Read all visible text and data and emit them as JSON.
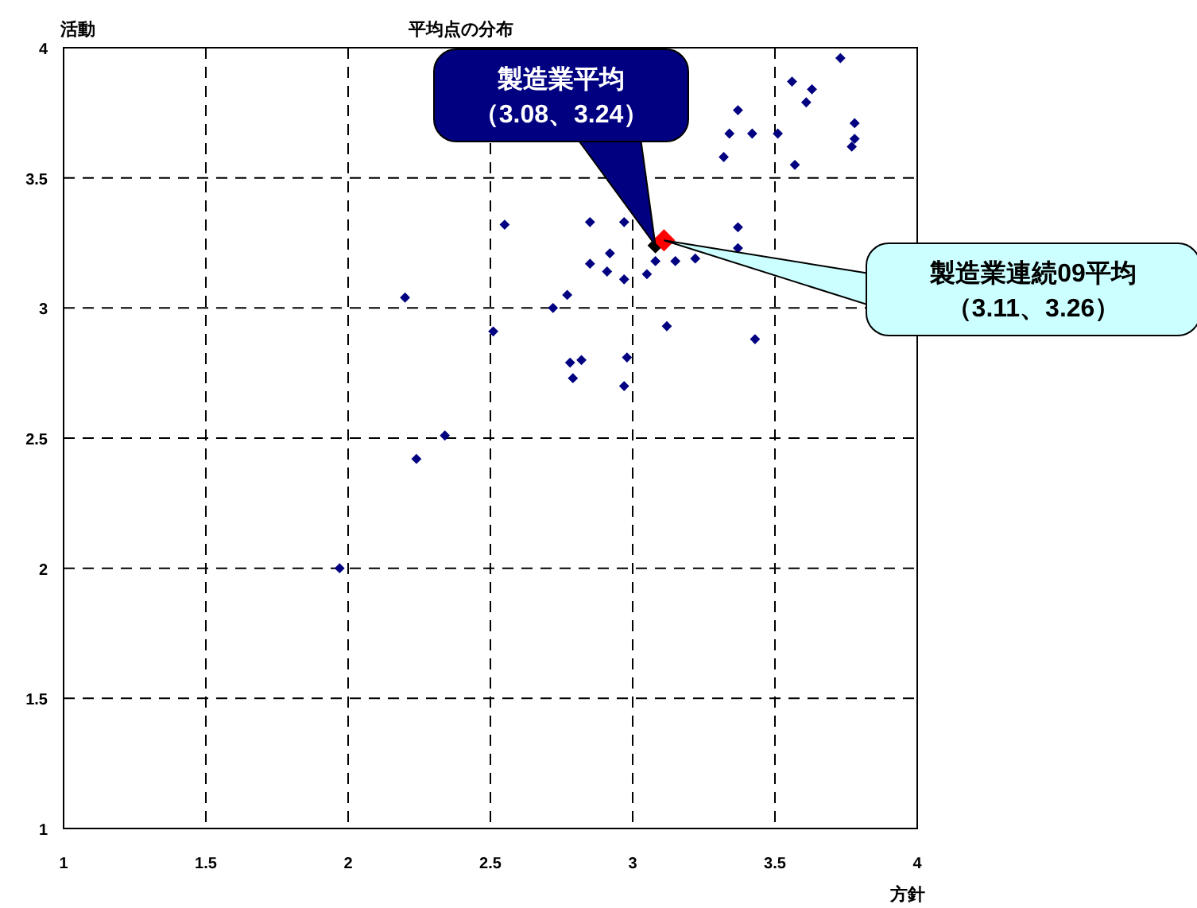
{
  "chart_data": {
    "type": "scatter",
    "title": "平均点の分布",
    "xlabel": "方針",
    "ylabel": "活動",
    "xlim": [
      1,
      4
    ],
    "ylim": [
      1,
      4
    ],
    "xticks": [
      1,
      1.5,
      2,
      2.5,
      3,
      3.5,
      4
    ],
    "yticks": [
      1,
      1.5,
      2,
      2.5,
      3,
      3.5,
      4
    ],
    "grid": true,
    "marker": "diamond",
    "series": [
      {
        "color": "#000080",
        "x": [
          3.73,
          3.56,
          3.63,
          3.61,
          3.37,
          3.34,
          3.42,
          3.51,
          3.78,
          3.78,
          3.77,
          3.32,
          3.57,
          2.55,
          2.85,
          2.97,
          3.37,
          2.92,
          2.85,
          2.91,
          2.97,
          3.05,
          3.08,
          3.15,
          3.22,
          3.37,
          2.2,
          2.77,
          2.72,
          2.51,
          3.12,
          3.43,
          2.78,
          2.82,
          2.98,
          2.79,
          2.97,
          2.34,
          2.24,
          1.97
        ],
        "values": [
          3.96,
          3.87,
          3.84,
          3.79,
          3.76,
          3.67,
          3.67,
          3.67,
          3.71,
          3.65,
          3.62,
          3.58,
          3.55,
          3.32,
          3.33,
          3.33,
          3.31,
          3.21,
          3.17,
          3.14,
          3.11,
          3.13,
          3.18,
          3.18,
          3.19,
          3.23,
          3.04,
          3.05,
          3.0,
          2.91,
          2.93,
          2.88,
          2.79,
          2.8,
          2.81,
          2.73,
          2.7,
          2.51,
          2.42,
          2.0
        ]
      },
      {
        "color": "#000000",
        "x": [
          3.08
        ],
        "values": [
          3.24
        ]
      },
      {
        "color": "#ff0000",
        "x": [
          3.11
        ],
        "values": [
          3.26
        ]
      }
    ],
    "annotations": [
      "製造業平均",
      "（3.08、3.24）",
      "製造業連続09平均",
      "（3.11、3.26）"
    ]
  }
}
